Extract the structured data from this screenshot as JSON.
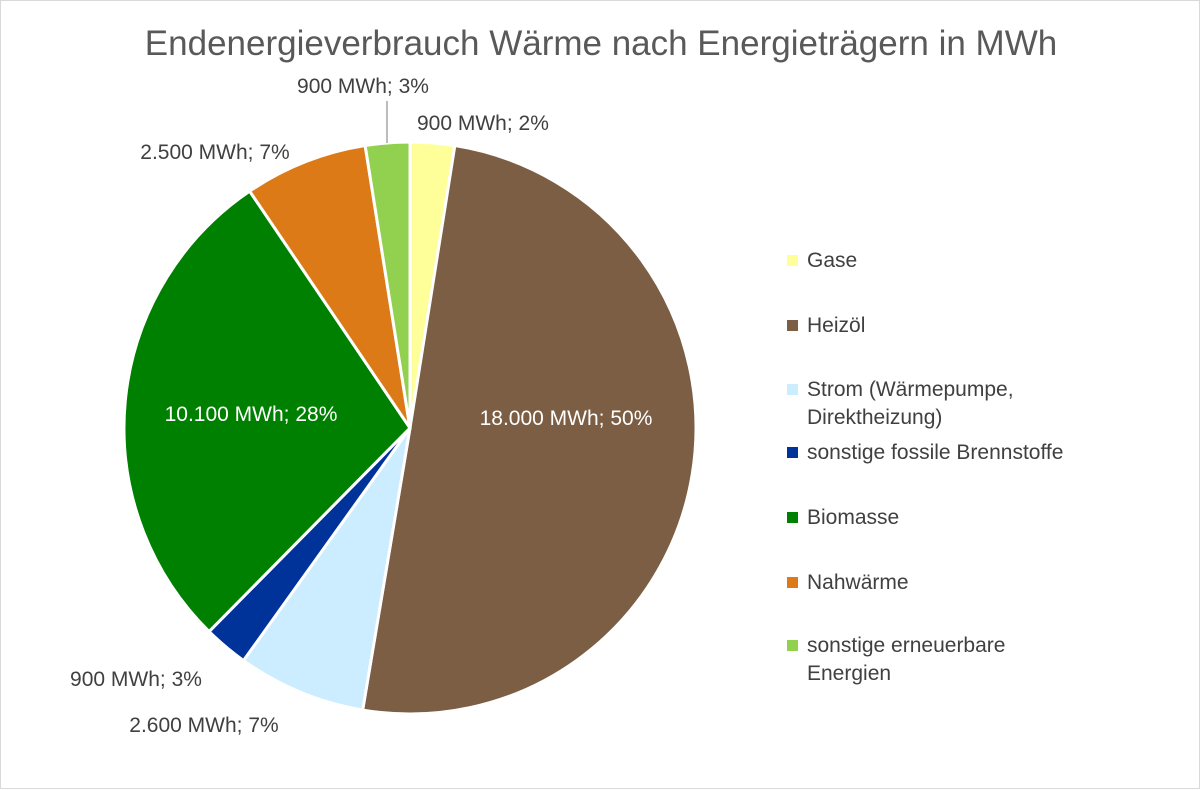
{
  "chart_data": {
    "type": "pie",
    "title": "Endenergieverbrauch Wärme nach Energieträgern in MWh",
    "unit": "MWh",
    "legend_position": "right",
    "slices": [
      {
        "name": "Gase",
        "value": 900,
        "label": "900 MWh; 2%",
        "color": "#FFFF99"
      },
      {
        "name": "Heizöl",
        "value": 18000,
        "label": "18.000 MWh; 50%",
        "color": "#7B5E43"
      },
      {
        "name": "Strom (Wärmepumpe, Direktheizung)",
        "value": 2600,
        "label": "2.600 MWh; 7%",
        "color": "#CCECFF"
      },
      {
        "name": "sonstige fossile Brennstoffe",
        "value": 900,
        "label": "900 MWh; 3%",
        "color": "#003399"
      },
      {
        "name": "Biomasse",
        "value": 10100,
        "label": "10.100 MWh; 28%",
        "color": "#008000"
      },
      {
        "name": "Nahwärme",
        "value": 2500,
        "label": "2.500 MWh; 7%",
        "color": "#DD7A18"
      },
      {
        "name": "sonstige erneuerbare Energien",
        "value": 900,
        "label": "900 MWh; 3%",
        "color": "#92D050"
      }
    ],
    "legend": [
      [
        "Gase"
      ],
      [
        "Heizöl"
      ],
      [
        "Strom (Wärmepumpe,",
        "Direktheizung)"
      ],
      [
        "sonstige fossile Brennstoffe"
      ],
      [
        "Biomasse"
      ],
      [
        "Nahwärme"
      ],
      [
        "sonstige erneuerbare",
        "Energien"
      ]
    ]
  }
}
